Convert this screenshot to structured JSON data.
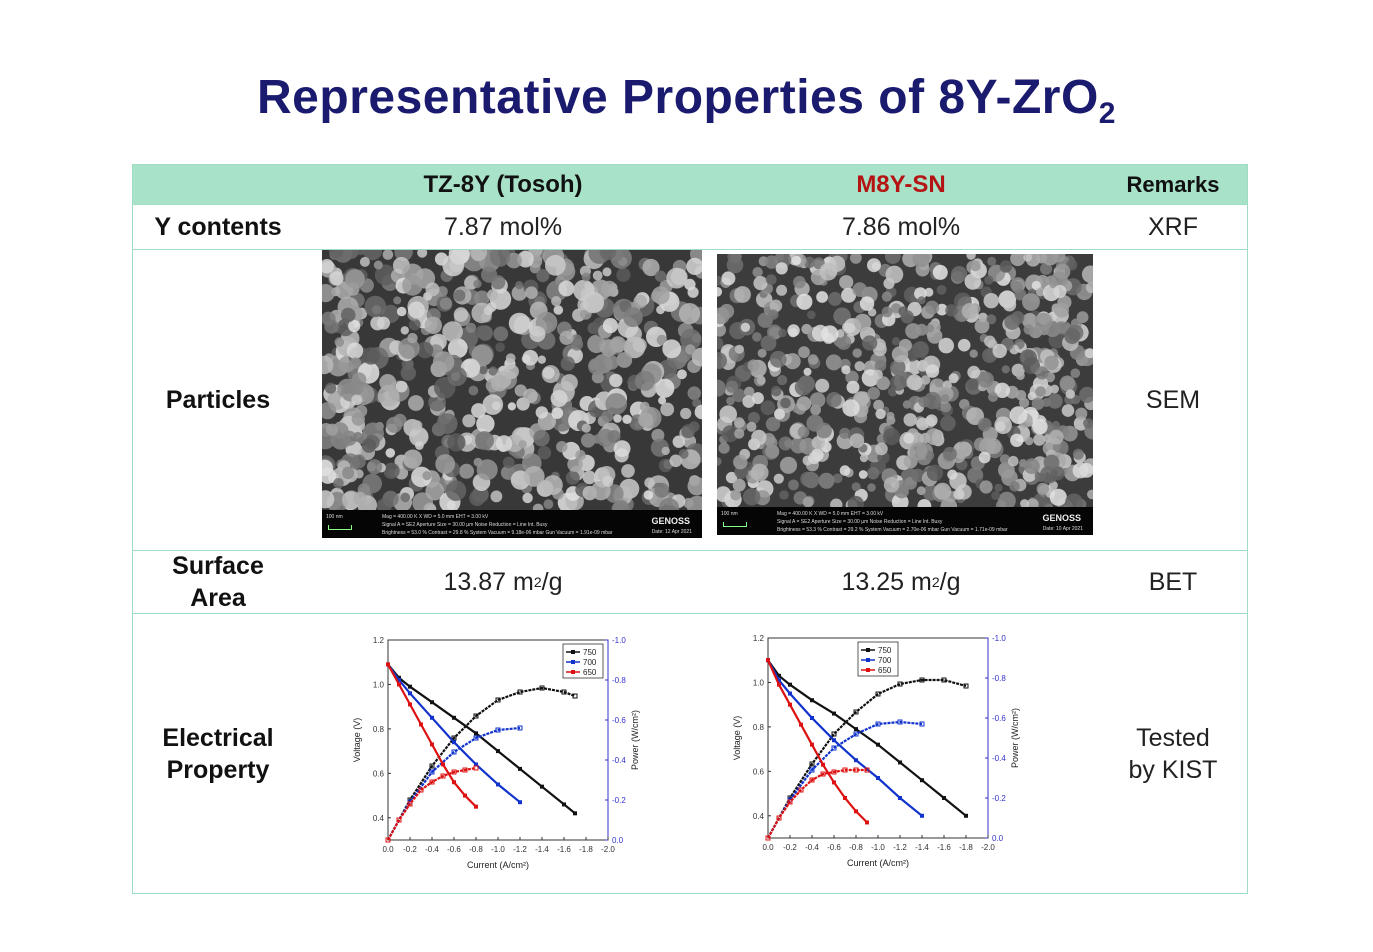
{
  "title": {
    "main": "Representative Properties of 8Y-ZrO",
    "sub": "2"
  },
  "table": {
    "headers": {
      "col1": "TZ-8Y (Tosoh)",
      "col2": "M8Y-SN",
      "remarks": "Remarks"
    },
    "rows": {
      "y_contents": {
        "label": "Y contents",
        "v1": "7.87 mol%",
        "v2": "7.86 mol%",
        "remark": "XRF"
      },
      "particles": {
        "label": "Particles",
        "remark": "SEM"
      },
      "surface_area": {
        "label_l1": "Surface",
        "label_l2": "Area",
        "v1_num": "13.87 m",
        "v1_unit": "/g",
        "v2_num": "13.25 m",
        "v2_unit": "/g",
        "sup": "2",
        "remark": "BET"
      },
      "electrical": {
        "label_l1": "Electrical",
        "label_l2": "Property",
        "remark_l1": "Tested",
        "remark_l2": "by KIST"
      }
    },
    "sem": [
      {
        "scale": "100 nm",
        "line1": "Mag = 400.00 K X   WD = 5.0 mm   EHT = 3.00 kV",
        "line2": "Signal A = SE2   Aperture Size = 30.00 µm   Noise Reduction = Line Int. Busy",
        "line3": "Brightness = 53.0 %  Contrast = 29.8 %   System Vacuum = 9.18e-06 mbar  Gun Vacuum = 1.91e-09 mbar",
        "brand": "GENOSS",
        "date": "Date: 12 Apr 2021"
      },
      {
        "scale": "100 nm",
        "line1": "Mag = 400.00 K X   WD = 5.0 mm   EHT = 3.00 kV",
        "line2": "Signal A = SE2   Aperture Size = 30.00 µm   Noise Reduction = Line Int. Busy",
        "line3": "Brightness = 53.3 %  Contrast = 29.2 %   System Vacuum = 2.70e-06 mbar  Gun Vacuum = 1.71e-09 mbar",
        "brand": "GENOSS",
        "date": "Date: 10 Apr 2021"
      }
    ]
  },
  "chart_data": [
    {
      "type": "line",
      "title": "",
      "xlabel": "Current (A/cm²)",
      "ylabel": "Voltage (V)",
      "y2label": "Power (W/cm²)",
      "xlim": [
        0.0,
        -2.0
      ],
      "ylim": [
        0.3,
        1.2
      ],
      "y2lim": [
        0.0,
        -1.0
      ],
      "xticks": [
        "0.0",
        "-0.2",
        "-0.4",
        "-0.6",
        "-0.8",
        "-1.0",
        "-1.2",
        "-1.4",
        "-1.6",
        "-1.8",
        "-2.0"
      ],
      "yticks": [
        "0.4",
        "0.6",
        "0.8",
        "1.0",
        "1.2"
      ],
      "y2ticks": [
        "0.0",
        "-0.2",
        "-0.4",
        "-0.6",
        "-0.8",
        "-1.0"
      ],
      "legend": [
        "750",
        "700",
        "650"
      ],
      "legend_position": "top-right",
      "colors": {
        "750": "#111111",
        "700": "#1133cc",
        "650": "#dd1111"
      },
      "series": [
        {
          "name": "750",
          "x": [
            0.0,
            -0.1,
            -0.2,
            -0.4,
            -0.6,
            -0.8,
            -1.0,
            -1.2,
            -1.4,
            -1.6,
            -1.7
          ],
          "voltage": [
            1.09,
            1.03,
            0.99,
            0.92,
            0.85,
            0.78,
            0.7,
            0.62,
            0.54,
            0.46,
            0.42
          ],
          "power": [
            0.0,
            -0.1,
            -0.2,
            -0.37,
            -0.51,
            -0.62,
            -0.7,
            -0.74,
            -0.76,
            -0.74,
            -0.72
          ]
        },
        {
          "name": "700",
          "x": [
            0.0,
            -0.1,
            -0.2,
            -0.4,
            -0.6,
            -0.8,
            -1.0,
            -1.2
          ],
          "voltage": [
            1.09,
            1.02,
            0.96,
            0.85,
            0.74,
            0.64,
            0.55,
            0.47
          ],
          "power": [
            0.0,
            -0.1,
            -0.19,
            -0.34,
            -0.44,
            -0.51,
            -0.55,
            -0.56
          ]
        },
        {
          "name": "650",
          "x": [
            0.0,
            -0.1,
            -0.2,
            -0.3,
            -0.4,
            -0.5,
            -0.6,
            -0.7,
            -0.8
          ],
          "voltage": [
            1.09,
            1.0,
            0.91,
            0.82,
            0.73,
            0.64,
            0.56,
            0.5,
            0.45
          ],
          "power": [
            0.0,
            -0.1,
            -0.18,
            -0.25,
            -0.29,
            -0.32,
            -0.34,
            -0.35,
            -0.36
          ]
        }
      ]
    },
    {
      "type": "line",
      "title": "",
      "xlabel": "Current (A/cm²)",
      "ylabel": "Voltage (V)",
      "y2label": "Power (W/cm²)",
      "xlim": [
        0.0,
        -2.0
      ],
      "ylim": [
        0.3,
        1.2
      ],
      "y2lim": [
        0.0,
        -1.0
      ],
      "xticks": [
        "0.0",
        "-0.2",
        "-0.4",
        "-0.6",
        "-0.8",
        "-1.0",
        "-1.2",
        "-1.4",
        "-1.6",
        "-1.8",
        "-2.0"
      ],
      "yticks": [
        "0.4",
        "0.6",
        "0.8",
        "1.0",
        "1.2"
      ],
      "y2ticks": [
        "0.0",
        "-0.2",
        "-0.4",
        "-0.6",
        "-0.8",
        "-1.0"
      ],
      "legend": [
        "750",
        "700",
        "650"
      ],
      "legend_position": "top-center",
      "colors": {
        "750": "#111111",
        "700": "#1133cc",
        "650": "#dd1111"
      },
      "series": [
        {
          "name": "750",
          "x": [
            0.0,
            -0.1,
            -0.2,
            -0.4,
            -0.6,
            -0.8,
            -1.0,
            -1.2,
            -1.4,
            -1.6,
            -1.8
          ],
          "voltage": [
            1.1,
            1.03,
            0.99,
            0.92,
            0.86,
            0.79,
            0.72,
            0.64,
            0.56,
            0.48,
            0.4
          ],
          "power": [
            0.0,
            -0.1,
            -0.2,
            -0.37,
            -0.52,
            -0.63,
            -0.72,
            -0.77,
            -0.79,
            -0.79,
            -0.76
          ]
        },
        {
          "name": "700",
          "x": [
            0.0,
            -0.1,
            -0.2,
            -0.4,
            -0.6,
            -0.8,
            -1.0,
            -1.2,
            -1.4
          ],
          "voltage": [
            1.1,
            1.01,
            0.95,
            0.84,
            0.74,
            0.65,
            0.57,
            0.48,
            0.4
          ],
          "power": [
            0.0,
            -0.1,
            -0.19,
            -0.34,
            -0.45,
            -0.52,
            -0.57,
            -0.58,
            -0.57
          ]
        },
        {
          "name": "650",
          "x": [
            0.0,
            -0.1,
            -0.2,
            -0.3,
            -0.4,
            -0.5,
            -0.6,
            -0.7,
            -0.8,
            -0.9
          ],
          "voltage": [
            1.1,
            0.99,
            0.9,
            0.81,
            0.72,
            0.63,
            0.55,
            0.48,
            0.42,
            0.37
          ],
          "power": [
            0.0,
            -0.1,
            -0.18,
            -0.24,
            -0.29,
            -0.32,
            -0.33,
            -0.34,
            -0.34,
            -0.34
          ]
        }
      ]
    }
  ]
}
